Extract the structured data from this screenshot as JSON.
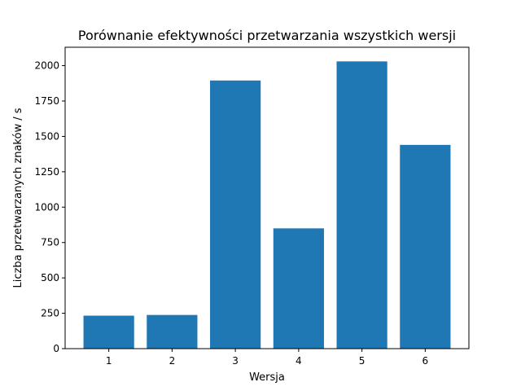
{
  "chart_data": {
    "type": "bar",
    "title": "Porównanie efektywności przetwarzania wszystkich wersji",
    "xlabel": "Wersja",
    "ylabel": "Liczba przetwarzanych znaków / s",
    "categories": [
      "1",
      "2",
      "3",
      "4",
      "5",
      "6"
    ],
    "values": [
      233,
      238,
      1895,
      850,
      2030,
      1440
    ],
    "ylim": [
      0,
      2130
    ],
    "yticks": [
      0,
      250,
      500,
      750,
      1000,
      1250,
      1500,
      1750,
      2000
    ],
    "ytick_labels": [
      "0",
      "250",
      "500",
      "750",
      "1000",
      "1250",
      "1500",
      "1750",
      "2000"
    ],
    "bar_color": "#1f77b4",
    "grid": false,
    "legend": "none"
  }
}
